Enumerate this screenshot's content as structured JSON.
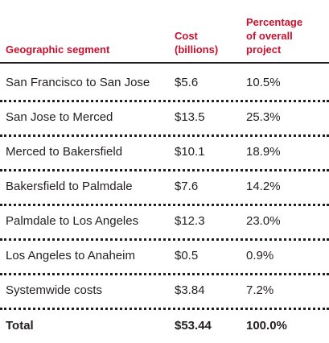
{
  "headers": {
    "segment": "Geographic segment",
    "cost_line1": "Cost",
    "cost_line2": "(billions)",
    "pct_line1": "Percentage",
    "pct_line2": "of overall",
    "pct_line3": "project"
  },
  "rows": [
    {
      "segment": "San Francisco to San Jose",
      "cost": "$5.6",
      "pct": "10.5%"
    },
    {
      "segment": "San Jose to Merced",
      "cost": "$13.5",
      "pct": "25.3%"
    },
    {
      "segment": "Merced to Bakersfield",
      "cost": "$10.1",
      "pct": "18.9%"
    },
    {
      "segment": "Bakersfield to Palmdale",
      "cost": "$7.6",
      "pct": "14.2%"
    },
    {
      "segment": "Palmdale to Los Angeles",
      "cost": "$12.3",
      "pct": "23.0%"
    },
    {
      "segment": "Los Angeles to Anaheim",
      "cost": "$0.5",
      "pct": "0.9%"
    },
    {
      "segment": "Systemwide costs",
      "cost": "$3.84",
      "pct": "7.2%"
    }
  ],
  "total": {
    "label": "Total",
    "cost": "$53.44",
    "pct": "100.0%"
  },
  "colors": {
    "header_red": "#c8102e",
    "text": "#231f20"
  }
}
